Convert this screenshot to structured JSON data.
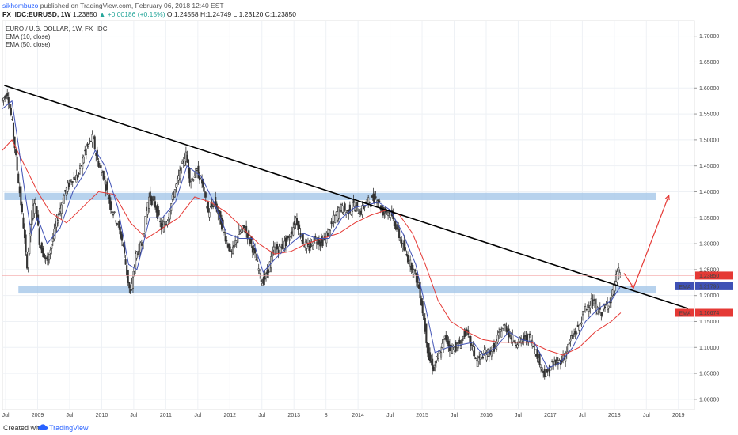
{
  "header": {
    "user": "sikhombuzo",
    "published": "published on TradingView.com, February 06, 2018 12:40 EST",
    "symbol": "FX_IDC:EURUSD, 1W",
    "last": "1.23850",
    "change": "▲ +0.00186 (+0.15%)",
    "open": "O:1.24558",
    "high": "H:1.24749",
    "low": "L:1.23120",
    "close": "C:1.23850"
  },
  "indicators": [
    "EURO / U.S. DOLLAR, 1W, FX_IDC",
    "EMA (10, close)",
    "EMA (50, close)"
  ],
  "footer": {
    "created": "Created with",
    "brand": "TradingView"
  },
  "colors": {
    "up": "#26a69a",
    "down": "#ef5350",
    "candle": "#333333",
    "ema10": "#3f51b5",
    "ema50": "#e53935",
    "zone": "#9fc3e7",
    "trendline": "#000000",
    "arrow": "#e53935"
  },
  "chart_data": {
    "type": "candlestick",
    "title": "EURO / U.S. DOLLAR, 1W, FX_IDC",
    "yaxis": {
      "ylim": [
        0.98,
        1.73
      ],
      "ticks": [
        "1.00000",
        "1.05000",
        "1.10000",
        "1.15000",
        "1.20000",
        "1.25000",
        "1.30000",
        "1.35000",
        "1.40000",
        "1.45000",
        "1.50000",
        "1.55000",
        "1.60000",
        "1.65000",
        "1.70000"
      ]
    },
    "xaxis": {
      "xlim": [
        2008.45,
        2019.25
      ],
      "ticks": [
        {
          "t": 2008.5,
          "label": "Jul"
        },
        {
          "t": 2009.0,
          "label": "2009"
        },
        {
          "t": 2009.5,
          "label": "Jul"
        },
        {
          "t": 2010.0,
          "label": "2010"
        },
        {
          "t": 2010.5,
          "label": "Jul"
        },
        {
          "t": 2011.0,
          "label": "2011"
        },
        {
          "t": 2011.5,
          "label": "Jul"
        },
        {
          "t": 2012.0,
          "label": "2012"
        },
        {
          "t": 2012.5,
          "label": "Jul"
        },
        {
          "t": 2013.0,
          "label": "2013"
        },
        {
          "t": 2013.5,
          "label": "8"
        },
        {
          "t": 2014.0,
          "label": "2014"
        },
        {
          "t": 2014.5,
          "label": "Jul"
        },
        {
          "t": 2015.0,
          "label": "2015"
        },
        {
          "t": 2015.5,
          "label": "Jul"
        },
        {
          "t": 2016.0,
          "label": "2016"
        },
        {
          "t": 2016.5,
          "label": "Jul"
        },
        {
          "t": 2017.0,
          "label": "2017"
        },
        {
          "t": 2017.5,
          "label": "Jul"
        },
        {
          "t": 2018.0,
          "label": "2018"
        },
        {
          "t": 2018.5,
          "label": "Jul"
        },
        {
          "t": 2019.0,
          "label": "2019"
        }
      ]
    },
    "price_path": [
      [
        2008.45,
        1.575
      ],
      [
        2008.55,
        1.59
      ],
      [
        2008.62,
        1.535
      ],
      [
        2008.72,
        1.42
      ],
      [
        2008.8,
        1.33
      ],
      [
        2008.85,
        1.255
      ],
      [
        2008.92,
        1.35
      ],
      [
        2008.98,
        1.39
      ],
      [
        2009.05,
        1.3
      ],
      [
        2009.15,
        1.265
      ],
      [
        2009.22,
        1.29
      ],
      [
        2009.35,
        1.36
      ],
      [
        2009.45,
        1.4
      ],
      [
        2009.55,
        1.425
      ],
      [
        2009.65,
        1.43
      ],
      [
        2009.75,
        1.475
      ],
      [
        2009.88,
        1.505
      ],
      [
        2009.95,
        1.46
      ],
      [
        2010.05,
        1.43
      ],
      [
        2010.15,
        1.375
      ],
      [
        2010.25,
        1.345
      ],
      [
        2010.35,
        1.3
      ],
      [
        2010.42,
        1.235
      ],
      [
        2010.47,
        1.2
      ],
      [
        2010.55,
        1.28
      ],
      [
        2010.65,
        1.3
      ],
      [
        2010.75,
        1.39
      ],
      [
        2010.85,
        1.375
      ],
      [
        2010.95,
        1.33
      ],
      [
        2011.05,
        1.35
      ],
      [
        2011.15,
        1.4
      ],
      [
        2011.25,
        1.44
      ],
      [
        2011.33,
        1.475
      ],
      [
        2011.4,
        1.42
      ],
      [
        2011.5,
        1.44
      ],
      [
        2011.58,
        1.42
      ],
      [
        2011.68,
        1.36
      ],
      [
        2011.78,
        1.38
      ],
      [
        2011.88,
        1.34
      ],
      [
        2011.98,
        1.3
      ],
      [
        2012.05,
        1.28
      ],
      [
        2012.15,
        1.32
      ],
      [
        2012.25,
        1.33
      ],
      [
        2012.35,
        1.3
      ],
      [
        2012.45,
        1.26
      ],
      [
        2012.52,
        1.225
      ],
      [
        2012.6,
        1.24
      ],
      [
        2012.7,
        1.29
      ],
      [
        2012.8,
        1.29
      ],
      [
        2012.95,
        1.31
      ],
      [
        2013.05,
        1.35
      ],
      [
        2013.15,
        1.305
      ],
      [
        2013.25,
        1.29
      ],
      [
        2013.35,
        1.31
      ],
      [
        2013.45,
        1.3
      ],
      [
        2013.55,
        1.32
      ],
      [
        2013.65,
        1.35
      ],
      [
        2013.75,
        1.37
      ],
      [
        2013.85,
        1.36
      ],
      [
        2013.95,
        1.375
      ],
      [
        2014.05,
        1.36
      ],
      [
        2014.15,
        1.38
      ],
      [
        2014.25,
        1.385
      ],
      [
        2014.32,
        1.39
      ],
      [
        2014.4,
        1.36
      ],
      [
        2014.48,
        1.365
      ],
      [
        2014.55,
        1.35
      ],
      [
        2014.62,
        1.33
      ],
      [
        2014.7,
        1.3
      ],
      [
        2014.8,
        1.27
      ],
      [
        2014.9,
        1.245
      ],
      [
        2014.98,
        1.21
      ],
      [
        2015.05,
        1.15
      ],
      [
        2015.12,
        1.08
      ],
      [
        2015.2,
        1.06
      ],
      [
        2015.3,
        1.09
      ],
      [
        2015.38,
        1.12
      ],
      [
        2015.45,
        1.1
      ],
      [
        2015.55,
        1.1
      ],
      [
        2015.62,
        1.11
      ],
      [
        2015.7,
        1.13
      ],
      [
        2015.8,
        1.1
      ],
      [
        2015.88,
        1.07
      ],
      [
        2015.95,
        1.085
      ],
      [
        2016.05,
        1.09
      ],
      [
        2016.15,
        1.1
      ],
      [
        2016.25,
        1.135
      ],
      [
        2016.32,
        1.14
      ],
      [
        2016.4,
        1.12
      ],
      [
        2016.5,
        1.11
      ],
      [
        2016.6,
        1.115
      ],
      [
        2016.7,
        1.12
      ],
      [
        2016.8,
        1.09
      ],
      [
        2016.88,
        1.06
      ],
      [
        2016.96,
        1.045
      ],
      [
        2017.05,
        1.07
      ],
      [
        2017.15,
        1.07
      ],
      [
        2017.25,
        1.085
      ],
      [
        2017.35,
        1.12
      ],
      [
        2017.45,
        1.135
      ],
      [
        2017.55,
        1.17
      ],
      [
        2017.65,
        1.19
      ],
      [
        2017.72,
        1.18
      ],
      [
        2017.8,
        1.165
      ],
      [
        2017.9,
        1.18
      ],
      [
        2017.98,
        1.2
      ],
      [
        2018.05,
        1.235
      ],
      [
        2018.08,
        1.248
      ],
      [
        2018.1,
        1.2385
      ]
    ],
    "ema10_path": [
      [
        2008.45,
        1.56
      ],
      [
        2008.6,
        1.575
      ],
      [
        2008.7,
        1.49
      ],
      [
        2008.8,
        1.4
      ],
      [
        2008.9,
        1.32
      ],
      [
        2009.0,
        1.35
      ],
      [
        2009.15,
        1.3
      ],
      [
        2009.35,
        1.33
      ],
      [
        2009.55,
        1.4
      ],
      [
        2009.75,
        1.44
      ],
      [
        2009.9,
        1.48
      ],
      [
        2010.05,
        1.45
      ],
      [
        2010.25,
        1.37
      ],
      [
        2010.42,
        1.26
      ],
      [
        2010.55,
        1.25
      ],
      [
        2010.75,
        1.35
      ],
      [
        2010.95,
        1.35
      ],
      [
        2011.15,
        1.38
      ],
      [
        2011.33,
        1.45
      ],
      [
        2011.55,
        1.43
      ],
      [
        2011.75,
        1.38
      ],
      [
        2011.95,
        1.32
      ],
      [
        2012.15,
        1.31
      ],
      [
        2012.35,
        1.31
      ],
      [
        2012.52,
        1.245
      ],
      [
        2012.7,
        1.27
      ],
      [
        2012.95,
        1.3
      ],
      [
        2013.15,
        1.32
      ],
      [
        2013.35,
        1.31
      ],
      [
        2013.55,
        1.31
      ],
      [
        2013.75,
        1.35
      ],
      [
        2013.95,
        1.37
      ],
      [
        2014.15,
        1.375
      ],
      [
        2014.32,
        1.38
      ],
      [
        2014.5,
        1.365
      ],
      [
        2014.7,
        1.32
      ],
      [
        2014.9,
        1.26
      ],
      [
        2015.05,
        1.18
      ],
      [
        2015.2,
        1.09
      ],
      [
        2015.4,
        1.1
      ],
      [
        2015.6,
        1.105
      ],
      [
        2015.8,
        1.11
      ],
      [
        2015.95,
        1.085
      ],
      [
        2016.15,
        1.1
      ],
      [
        2016.35,
        1.13
      ],
      [
        2016.55,
        1.115
      ],
      [
        2016.75,
        1.11
      ],
      [
        2016.96,
        1.06
      ],
      [
        2017.15,
        1.07
      ],
      [
        2017.35,
        1.1
      ],
      [
        2017.55,
        1.15
      ],
      [
        2017.75,
        1.175
      ],
      [
        2017.95,
        1.19
      ],
      [
        2018.1,
        1.21796
      ]
    ],
    "ema50_path": [
      [
        2008.45,
        1.48
      ],
      [
        2008.6,
        1.5
      ],
      [
        2008.8,
        1.45
      ],
      [
        2009.0,
        1.4
      ],
      [
        2009.2,
        1.36
      ],
      [
        2009.45,
        1.34
      ],
      [
        2009.7,
        1.37
      ],
      [
        2009.95,
        1.4
      ],
      [
        2010.2,
        1.395
      ],
      [
        2010.45,
        1.34
      ],
      [
        2010.7,
        1.31
      ],
      [
        2010.95,
        1.33
      ],
      [
        2011.2,
        1.35
      ],
      [
        2011.45,
        1.39
      ],
      [
        2011.7,
        1.38
      ],
      [
        2011.95,
        1.36
      ],
      [
        2012.2,
        1.33
      ],
      [
        2012.45,
        1.3
      ],
      [
        2012.7,
        1.28
      ],
      [
        2012.95,
        1.285
      ],
      [
        2013.2,
        1.3
      ],
      [
        2013.45,
        1.31
      ],
      [
        2013.7,
        1.32
      ],
      [
        2013.95,
        1.34
      ],
      [
        2014.2,
        1.355
      ],
      [
        2014.45,
        1.365
      ],
      [
        2014.65,
        1.355
      ],
      [
        2014.85,
        1.32
      ],
      [
        2015.05,
        1.26
      ],
      [
        2015.25,
        1.19
      ],
      [
        2015.45,
        1.15
      ],
      [
        2015.7,
        1.13
      ],
      [
        2015.95,
        1.115
      ],
      [
        2016.2,
        1.11
      ],
      [
        2016.45,
        1.11
      ],
      [
        2016.7,
        1.11
      ],
      [
        2016.95,
        1.095
      ],
      [
        2017.2,
        1.085
      ],
      [
        2017.45,
        1.1
      ],
      [
        2017.7,
        1.13
      ],
      [
        2017.95,
        1.15
      ],
      [
        2018.1,
        1.16674
      ]
    ],
    "trendline": {
      "from": [
        2008.48,
        1.605
      ],
      "to": [
        2019.15,
        1.175
      ]
    },
    "zones": [
      {
        "t1": 2008.48,
        "t2": 2018.65,
        "y1": 1.384,
        "y2": 1.398
      },
      {
        "t1": 2008.7,
        "t2": 2018.65,
        "y1": 1.204,
        "y2": 1.218
      }
    ],
    "arrows": [
      [
        [
          2018.15,
          1.243
        ],
        [
          2018.3,
          1.215
        ]
      ],
      [
        [
          2018.3,
          1.215
        ],
        [
          2018.85,
          1.393
        ]
      ]
    ],
    "price_labels": [
      {
        "text": "1.23850",
        "y": 1.2385,
        "color": "#e53935"
      },
      {
        "text": "1.21796",
        "y": 1.21796,
        "color": "#3f51b5",
        "tag": "EMA"
      },
      {
        "text": "1.16674",
        "y": 1.16674,
        "color": "#e53935",
        "tag": "EMA"
      }
    ]
  }
}
